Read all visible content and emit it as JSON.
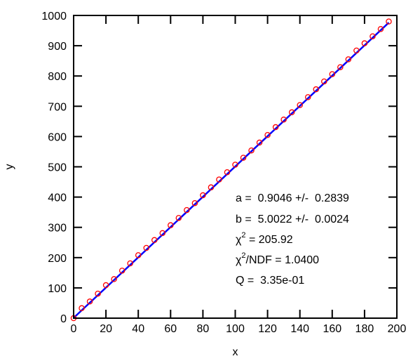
{
  "chart_data": {
    "type": "scatter",
    "xlabel": "x",
    "ylabel": "y",
    "xlim": [
      0,
      200
    ],
    "ylim": [
      0,
      1000
    ],
    "xticks": [
      0,
      20,
      40,
      60,
      80,
      100,
      120,
      140,
      160,
      180,
      200
    ],
    "yticks": [
      0,
      100,
      200,
      300,
      400,
      500,
      600,
      700,
      800,
      900,
      1000
    ],
    "grid": false,
    "series": [
      {
        "kind": "points",
        "marker": "open-circle",
        "color": "#ff0000",
        "x": [
          0,
          5,
          10,
          15,
          20,
          25,
          30,
          35,
          40,
          45,
          50,
          55,
          60,
          65,
          70,
          75,
          80,
          85,
          90,
          95,
          100,
          105,
          110,
          115,
          120,
          125,
          130,
          135,
          140,
          145,
          150,
          155,
          160,
          165,
          170,
          175,
          180,
          185,
          190,
          195
        ],
        "y": [
          0,
          33,
          55,
          81,
          109,
          129,
          157,
          181,
          208,
          232,
          258,
          281,
          307,
          331,
          357,
          380,
          406,
          432,
          458,
          482,
          507,
          530,
          554,
          580,
          605,
          631,
          656,
          680,
          704,
          730,
          756,
          782,
          806,
          829,
          855,
          884,
          908,
          931,
          955,
          980
        ]
      },
      {
        "kind": "fit-line",
        "color": "#0000ff",
        "intercept": 0.9046,
        "slope": 5.0022
      }
    ],
    "annotation": {
      "a_line": "a =  0.9046 +/-  0.2839",
      "b_line": "b =  5.0022 +/-  0.0024",
      "chi2_prefix": "χ",
      "chi2_sup": "2",
      "chi2_suffix": " = 205.92",
      "ndf_prefix": "χ",
      "ndf_sup": "2",
      "ndf_suffix": "/NDF = 1.0400",
      "q_line": "Q =  3.35e-01"
    }
  }
}
